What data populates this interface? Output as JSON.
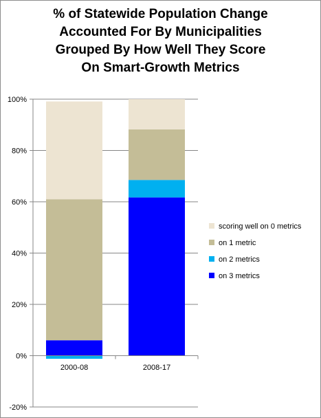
{
  "chart_data": {
    "type": "bar",
    "stacked": true,
    "title_lines": [
      "% of Statewide Population Change",
      "Accounted For By Municipalities",
      "Grouped By How Well They Score",
      "On Smart-Growth Metrics"
    ],
    "categories": [
      "2000-08",
      "2008-17"
    ],
    "series": [
      {
        "name": "on 3 metrics",
        "values": [
          6,
          61.7
        ],
        "color": "#0000ff"
      },
      {
        "name": "on 2 metrics",
        "values": [
          -1.2,
          6.8
        ],
        "color": "#00b0f0"
      },
      {
        "name": "on 1 metric",
        "values": [
          55,
          19.7
        ],
        "color": "#c4bd97"
      },
      {
        "name": "scoring well on 0 metrics",
        "values": [
          38.1,
          11.8
        ],
        "color": "#ede4d2"
      }
    ],
    "y_ticks": [
      "-20%",
      "0%",
      "20%",
      "40%",
      "60%",
      "80%",
      "100%"
    ],
    "ylim": [
      -20,
      100
    ],
    "grid": true,
    "legend_position": "right"
  }
}
